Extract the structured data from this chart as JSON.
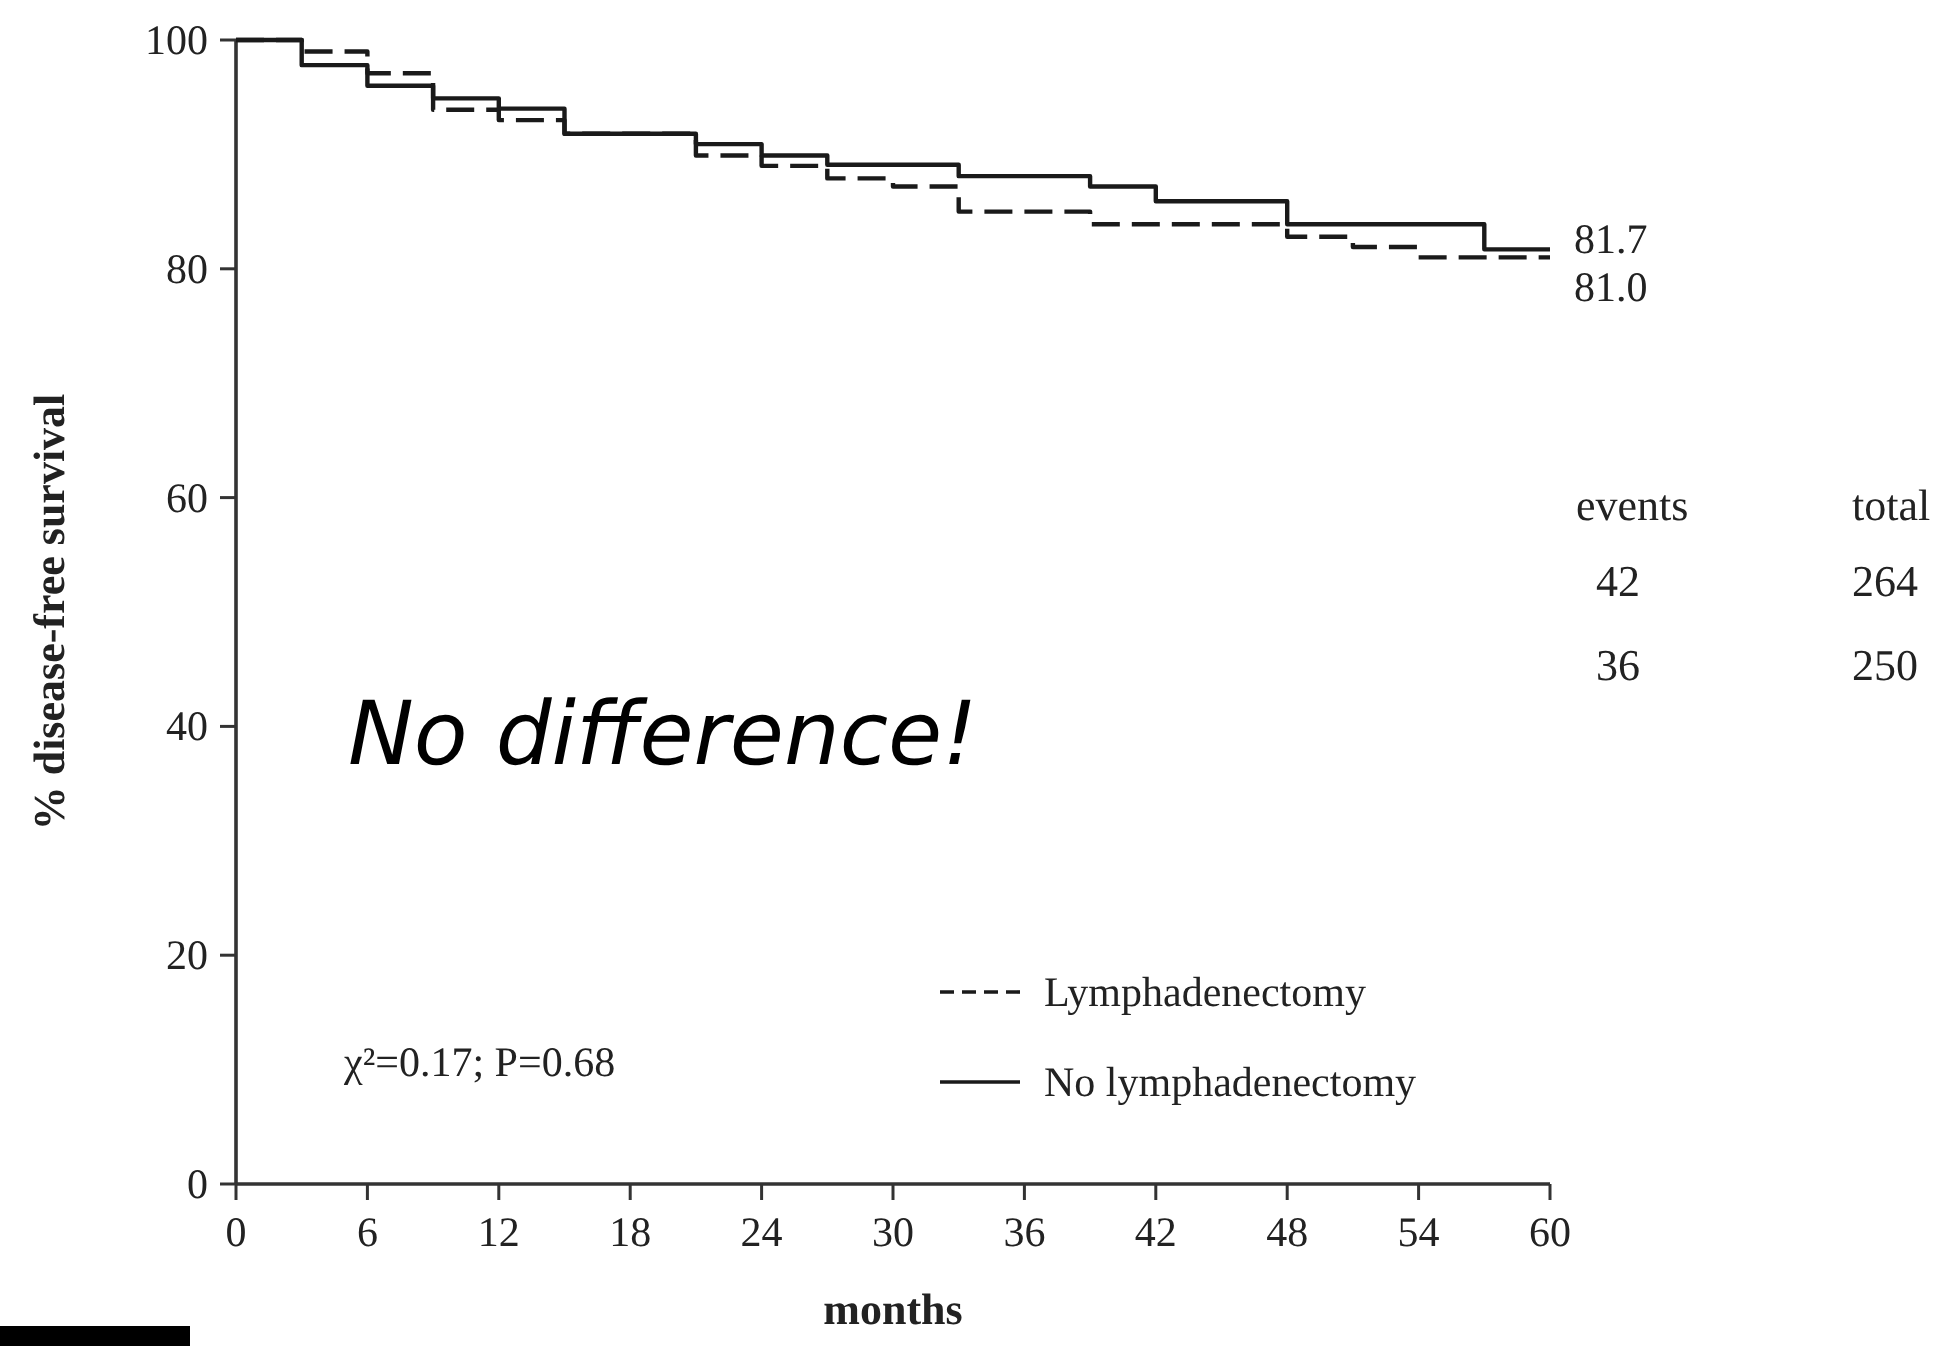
{
  "chart_data": {
    "type": "step",
    "xlabel": "months",
    "ylabel": "% disease-free survival",
    "xlim": [
      0,
      60
    ],
    "ylim": [
      0,
      100
    ],
    "xticks": [
      0,
      6,
      12,
      18,
      24,
      30,
      36,
      42,
      48,
      54,
      60
    ],
    "yticks": [
      0,
      20,
      40,
      60,
      80,
      100
    ],
    "grid": false,
    "legend": "bottom right",
    "marker": "none",
    "series": [
      {
        "name": "Lymphadenectomy",
        "color": "#1a1a1a",
        "line_style": "dashed",
        "x": [
          0,
          3,
          6,
          9,
          12,
          15,
          21,
          24,
          27,
          30,
          33,
          39,
          48,
          51,
          54,
          60
        ],
        "values": [
          100,
          99,
          97.1,
          93.9,
          93,
          91.8,
          89.9,
          89,
          87.9,
          87.2,
          85,
          83.9,
          82.8,
          81.9,
          81,
          81
        ]
      },
      {
        "name": "No lymphadenectomy",
        "color": "#1a1a1a",
        "line_style": "solid",
        "x": [
          0,
          3,
          6,
          9,
          12,
          15,
          21,
          24,
          27,
          33,
          39,
          42,
          48,
          57,
          60
        ],
        "values": [
          100,
          97.8,
          96,
          94.9,
          94,
          91.8,
          90.9,
          89.9,
          89.1,
          88.1,
          87.2,
          85.9,
          83.9,
          81.7,
          81.7
        ]
      }
    ],
    "annotations": [
      {
        "text": "81.7",
        "x": 60,
        "y": 81.7
      },
      {
        "text": "81.0",
        "x": 60,
        "y": 81
      },
      "events",
      "total",
      "42",
      "264",
      "36",
      "250",
      "No difference!",
      "χ²=0.17; P=0.68"
    ]
  }
}
